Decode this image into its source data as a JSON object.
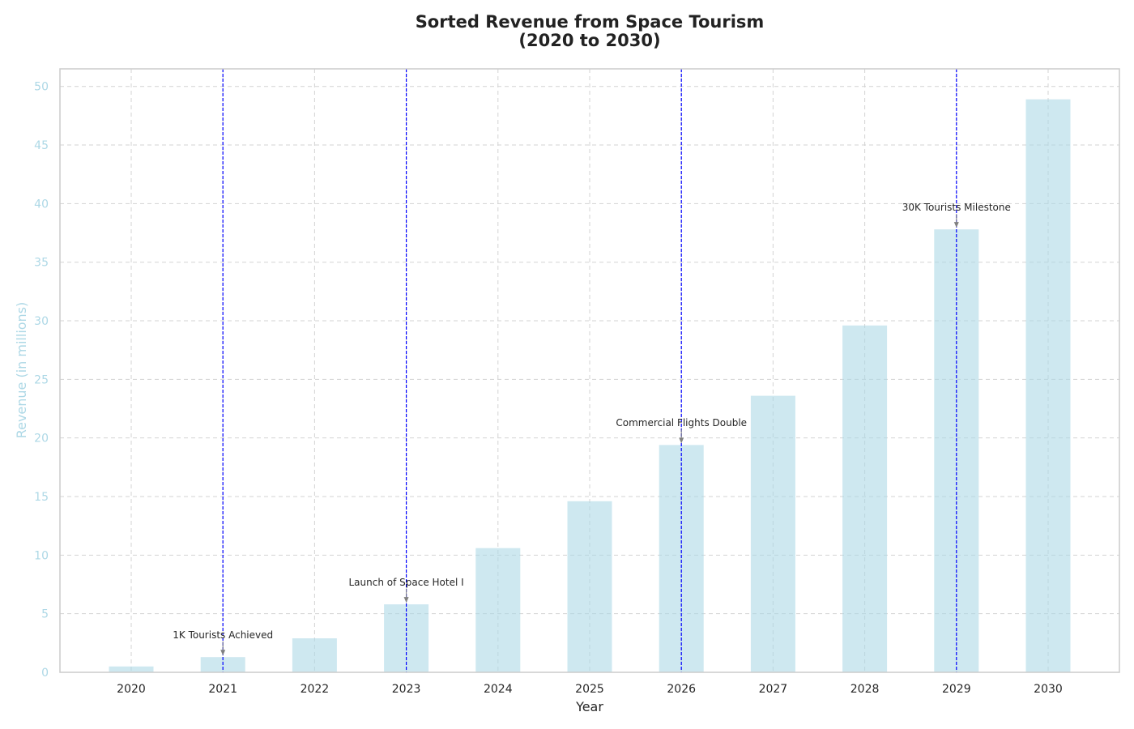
{
  "chart_data": {
    "type": "bar",
    "title_line1": "Sorted Revenue from Space Tourism",
    "title_line2": "(2020 to 2030)",
    "xlabel": "Year",
    "ylabel": "Revenue (in millions)",
    "categories": [
      "2020",
      "2021",
      "2022",
      "2023",
      "2024",
      "2025",
      "2026",
      "2027",
      "2028",
      "2029",
      "2030"
    ],
    "values": [
      0.5,
      1.3,
      2.9,
      5.8,
      10.6,
      14.6,
      19.4,
      23.6,
      29.6,
      37.8,
      48.9
    ],
    "ylim": [
      0,
      51.5
    ],
    "yticks": [
      0,
      5,
      10,
      15,
      20,
      25,
      30,
      35,
      40,
      45,
      50
    ],
    "grid": true,
    "legend": "none",
    "colors": {
      "bar": "#add8e6",
      "ylabel": "#add8e6",
      "ytick": "#add8e6",
      "milestone_line": "#0000ff",
      "grid": "#d3d3d3",
      "frame": "#cccccc",
      "arrow": "#808080"
    },
    "annotations": [
      {
        "category": "2021",
        "value": 1.3,
        "text": "1K Tourists Achieved"
      },
      {
        "category": "2023",
        "value": 5.8,
        "text": "Launch of Space Hotel I"
      },
      {
        "category": "2026",
        "value": 19.4,
        "text": "Commercial Flights Double"
      },
      {
        "category": "2029",
        "value": 37.8,
        "text": "30K Tourists Milestone"
      }
    ]
  }
}
